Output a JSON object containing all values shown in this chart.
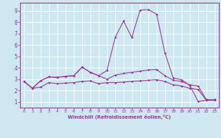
{
  "xlabel": "Windchill (Refroidissement éolien,°C)",
  "bg_color": "#cde8f0",
  "line_color": "#993399",
  "grid_color": "#ffffff",
  "xlim": [
    -0.5,
    23.5
  ],
  "ylim": [
    0.5,
    9.7
  ],
  "xticks": [
    0,
    1,
    2,
    3,
    4,
    5,
    6,
    7,
    8,
    9,
    10,
    11,
    12,
    13,
    14,
    15,
    16,
    17,
    18,
    19,
    20,
    21,
    22,
    23
  ],
  "yticks": [
    1,
    2,
    3,
    4,
    5,
    6,
    7,
    8,
    9
  ],
  "lines": [
    [
      0,
      2.8,
      1,
      2.2,
      2,
      2.85,
      3,
      3.2,
      4,
      3.15,
      5,
      3.25,
      6,
      3.3,
      7,
      4.05,
      8,
      3.6,
      9,
      3.3,
      10,
      3.75,
      11,
      6.65,
      12,
      8.1,
      13,
      6.65,
      14,
      9.05,
      15,
      9.1,
      16,
      8.7,
      17,
      5.3,
      18,
      3.1,
      19,
      2.95,
      20,
      2.45,
      21,
      1.05,
      22,
      1.15,
      23,
      1.2
    ],
    [
      0,
      2.8,
      1,
      2.2,
      2,
      2.85,
      3,
      3.2,
      4,
      3.15,
      5,
      3.25,
      6,
      3.3,
      7,
      4.05,
      8,
      3.6,
      9,
      3.3,
      10,
      3.0,
      11,
      3.35,
      12,
      3.5,
      13,
      3.6,
      14,
      3.7,
      15,
      3.8,
      16,
      3.85,
      17,
      3.3,
      18,
      2.9,
      19,
      2.8,
      20,
      2.5,
      21,
      2.4,
      22,
      1.2,
      23,
      1.2
    ],
    [
      0,
      2.8,
      1,
      2.2,
      2,
      2.3,
      3,
      2.7,
      4,
      2.6,
      5,
      2.65,
      6,
      2.7,
      7,
      2.8,
      8,
      2.85,
      9,
      2.6,
      10,
      2.7,
      11,
      2.7,
      12,
      2.75,
      13,
      2.8,
      14,
      2.85,
      15,
      2.9,
      16,
      2.95,
      17,
      2.8,
      18,
      2.5,
      19,
      2.4,
      20,
      2.2,
      21,
      2.1,
      22,
      1.15,
      23,
      1.15
    ]
  ]
}
